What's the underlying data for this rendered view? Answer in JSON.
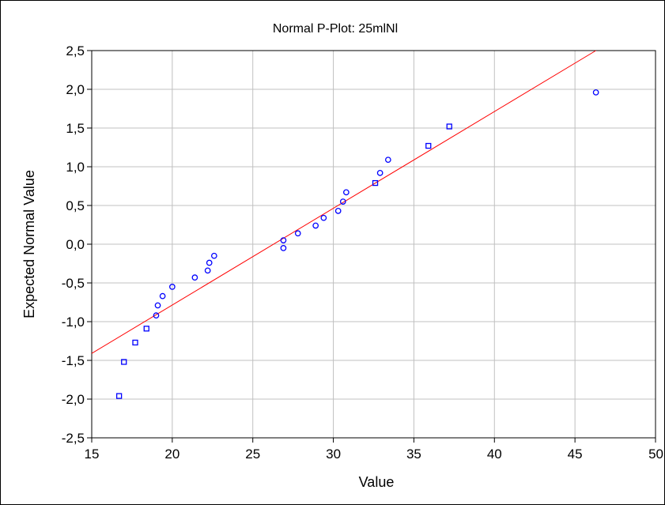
{
  "chart_data": {
    "type": "scatter",
    "title": "Normal P-Plot: 25mlNl",
    "xlabel": "Value",
    "ylabel": "Expected Normal Value",
    "xlim": [
      15,
      50
    ],
    "ylim": [
      -2.5,
      2.5
    ],
    "x_ticks": [
      15,
      20,
      25,
      30,
      35,
      40,
      45,
      50
    ],
    "y_ticks": [
      2.5,
      2.0,
      1.5,
      1.0,
      0.5,
      0.0,
      -0.5,
      -1.0,
      -1.5,
      -2.0,
      -2.5
    ],
    "x_tick_labels": [
      "15",
      "20",
      "25",
      "30",
      "35",
      "40",
      "45",
      "50"
    ],
    "y_tick_labels": [
      "2,5",
      "2,0",
      "1,5",
      "1,0",
      "0,5",
      "0,0",
      "-0,5",
      "-1,0",
      "-1,5",
      "-2,0",
      "-2,5"
    ],
    "grid": true,
    "legend": "none",
    "colors": {
      "points": "#0000ff",
      "fit_line": "#ff0000",
      "grid": "#c0c0c0"
    },
    "fit_line": {
      "x": [
        15,
        46.3
      ],
      "y": [
        -1.41,
        2.5
      ]
    },
    "points": [
      {
        "x": 16.7,
        "y": -1.96,
        "marker": "square"
      },
      {
        "x": 17.0,
        "y": -1.52,
        "marker": "square"
      },
      {
        "x": 17.7,
        "y": -1.27,
        "marker": "square"
      },
      {
        "x": 18.4,
        "y": -1.09,
        "marker": "square"
      },
      {
        "x": 19.0,
        "y": -0.92,
        "marker": "circle"
      },
      {
        "x": 19.1,
        "y": -0.79,
        "marker": "circle"
      },
      {
        "x": 19.4,
        "y": -0.67,
        "marker": "circle"
      },
      {
        "x": 20.0,
        "y": -0.55,
        "marker": "circle"
      },
      {
        "x": 21.4,
        "y": -0.43,
        "marker": "circle"
      },
      {
        "x": 22.2,
        "y": -0.34,
        "marker": "circle"
      },
      {
        "x": 22.3,
        "y": -0.24,
        "marker": "circle"
      },
      {
        "x": 22.6,
        "y": -0.15,
        "marker": "circle"
      },
      {
        "x": 26.9,
        "y": -0.05,
        "marker": "circle"
      },
      {
        "x": 26.9,
        "y": 0.05,
        "marker": "circle"
      },
      {
        "x": 27.8,
        "y": 0.14,
        "marker": "circle"
      },
      {
        "x": 28.9,
        "y": 0.24,
        "marker": "circle"
      },
      {
        "x": 29.4,
        "y": 0.34,
        "marker": "circle"
      },
      {
        "x": 30.3,
        "y": 0.43,
        "marker": "circle"
      },
      {
        "x": 30.6,
        "y": 0.55,
        "marker": "circle"
      },
      {
        "x": 30.8,
        "y": 0.67,
        "marker": "circle"
      },
      {
        "x": 32.6,
        "y": 0.79,
        "marker": "square"
      },
      {
        "x": 32.9,
        "y": 0.92,
        "marker": "circle"
      },
      {
        "x": 33.4,
        "y": 1.09,
        "marker": "circle"
      },
      {
        "x": 35.9,
        "y": 1.27,
        "marker": "square"
      },
      {
        "x": 37.2,
        "y": 1.52,
        "marker": "square"
      },
      {
        "x": 46.3,
        "y": 1.96,
        "marker": "circle"
      }
    ]
  }
}
